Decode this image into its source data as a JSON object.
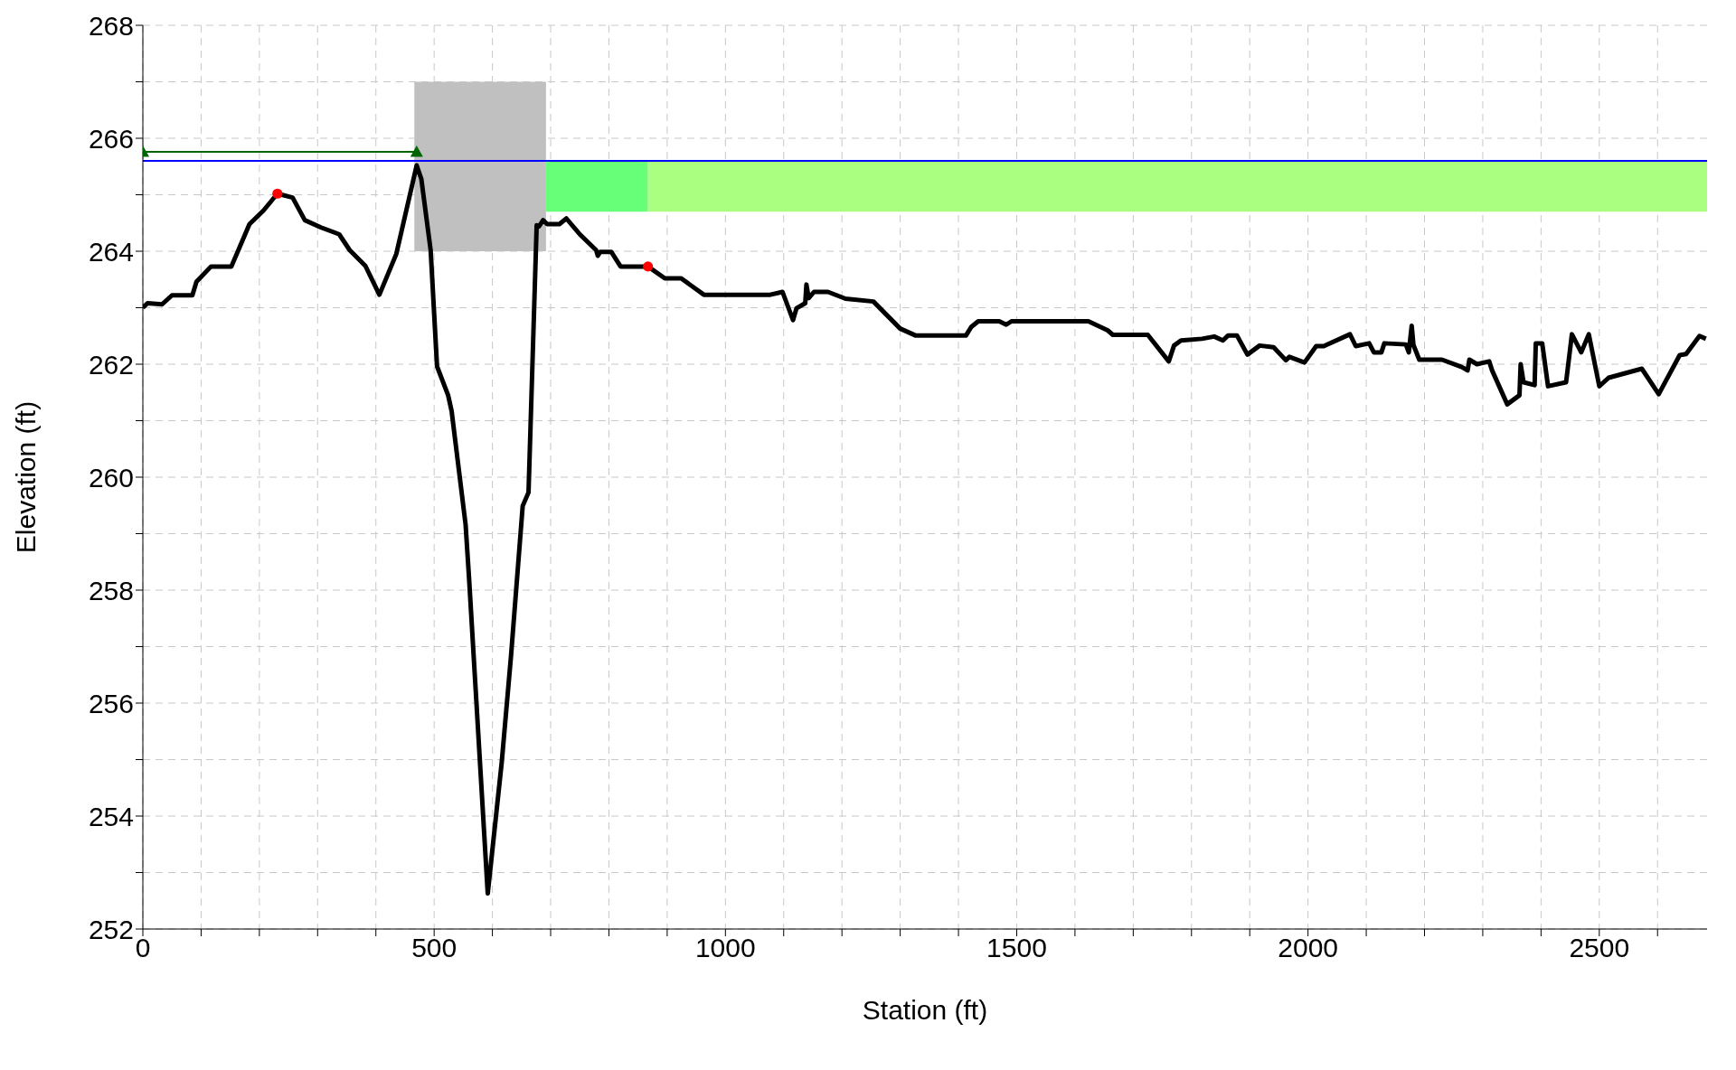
{
  "chart_data": {
    "type": "line",
    "xlabel": "Station (ft)",
    "ylabel": "Elevation (ft)",
    "xlim": [
      0,
      2685
    ],
    "ylim": [
      252,
      268
    ],
    "xticks": [
      0,
      {
        "value": 100,
        "label": null
      },
      {
        "value": 200,
        "label": null
      },
      {
        "value": 300,
        "label": null
      },
      {
        "value": 400,
        "label": null
      },
      500,
      {
        "value": 600,
        "label": null
      },
      {
        "value": 700,
        "label": null
      },
      {
        "value": 800,
        "label": null
      },
      {
        "value": 900,
        "label": null
      },
      1000,
      {
        "value": 1100,
        "label": null
      },
      {
        "value": 1200,
        "label": null
      },
      {
        "value": 1300,
        "label": null
      },
      {
        "value": 1400,
        "label": null
      },
      1500,
      {
        "value": 1600,
        "label": null
      },
      {
        "value": 1700,
        "label": null
      },
      {
        "value": 1800,
        "label": null
      },
      {
        "value": 1900,
        "label": null
      },
      2000,
      {
        "value": 2100,
        "label": null
      },
      {
        "value": 2200,
        "label": null
      },
      {
        "value": 2300,
        "label": null
      },
      {
        "value": 2400,
        "label": null
      },
      2500,
      {
        "value": 2600,
        "label": null
      }
    ],
    "yticks": [
      252,
      {
        "value": 253,
        "label": null
      },
      254,
      {
        "value": 255,
        "label": null
      },
      256,
      {
        "value": 257,
        "label": null
      },
      258,
      {
        "value": 259,
        "label": null
      },
      260,
      {
        "value": 261,
        "label": null
      },
      262,
      {
        "value": 263,
        "label": null
      },
      264,
      {
        "value": 265,
        "label": null
      },
      266,
      {
        "value": 267,
        "label": null
      },
      268
    ],
    "grid": true,
    "legend": false,
    "marker": "none",
    "line_style": "solid",
    "series": [
      {
        "type": "line",
        "color": "#c0c0c0",
        "x": [
          466,
          692
        ],
        "values": [
          null,
          null
        ],
        "lower": [
          264,
          264
        ],
        "upper": [
          267,
          267
        ]
      },
      {
        "type": "line",
        "color": "#66ff77",
        "x": [
          692,
          867
        ],
        "values": [
          null,
          null
        ],
        "lower": [
          264.7,
          264.7
        ],
        "upper": [
          265.6,
          265.6
        ]
      },
      {
        "type": "line",
        "color": "#aaff80",
        "x": [
          867,
          2685
        ],
        "values": [
          null,
          null
        ],
        "lower": [
          264.7,
          264.7
        ],
        "upper": [
          265.6,
          265.6
        ]
      },
      {
        "type": "line",
        "color": "#0000ff",
        "x": [
          0,
          2685
        ],
        "values": [
          265.6,
          265.6
        ]
      },
      {
        "type": "line",
        "color": "#006400",
        "marker": "triangle",
        "x": [
          0,
          470
        ],
        "values": [
          265.76,
          265.76
        ]
      },
      {
        "color": "#000000",
        "x": [
          0,
          8,
          33,
          50,
          85,
          92,
          117,
          152,
          183,
          207,
          231,
          257,
          278,
          306,
          337,
          355,
          382,
          406,
          435,
          470,
          478,
          494,
          505,
          524,
          530,
          554,
          560,
          592,
          616,
          632,
          652,
          662,
          676,
          680,
          687,
          694,
          715,
          727,
          750,
          778,
          781,
          785,
          804,
          820,
          867,
          896,
          924,
          963,
          1077,
          1098,
          1116,
          1122,
          1137,
          1139,
          1143,
          1152,
          1176,
          1206,
          1254,
          1300,
          1326,
          1413,
          1422,
          1434,
          1470,
          1482,
          1491,
          1623,
          1656,
          1665,
          1725,
          1761,
          1770,
          1782,
          1818,
          1839,
          1854,
          1863,
          1878,
          1896,
          1917,
          1941,
          1962,
          1968,
          1994,
          2014,
          2027,
          2072,
          2082,
          2105,
          2113,
          2126,
          2131,
          2168,
          2173,
          2178,
          2181,
          2191,
          2230,
          2264,
          2274,
          2277,
          2290,
          2311,
          2316,
          2342,
          2363,
          2365,
          2370,
          2389,
          2391,
          2402,
          2412,
          2443,
          2453,
          2469,
          2482,
          2500,
          2516,
          2573,
          2602,
          2638,
          2649,
          2672,
          2683
        ],
        "values": [
          263.0,
          263.08,
          263.06,
          263.22,
          263.22,
          263.46,
          263.73,
          263.73,
          264.48,
          264.72,
          265.02,
          264.95,
          264.55,
          264.42,
          264.3,
          264.02,
          263.74,
          263.23,
          263.95,
          265.52,
          265.28,
          264.02,
          261.96,
          261.45,
          261.17,
          259.16,
          258.2,
          252.63,
          254.95,
          256.84,
          259.49,
          259.73,
          264.46,
          264.44,
          264.55,
          264.48,
          264.48,
          264.58,
          264.3,
          264.02,
          263.92,
          263.99,
          263.99,
          263.73,
          263.73,
          263.52,
          263.52,
          263.23,
          263.23,
          263.28,
          262.78,
          262.99,
          263.08,
          263.41,
          263.17,
          263.28,
          263.28,
          263.16,
          263.11,
          262.63,
          262.51,
          262.51,
          262.66,
          262.76,
          262.76,
          262.7,
          262.76,
          262.76,
          262.6,
          262.52,
          262.52,
          262.05,
          262.33,
          262.42,
          262.45,
          262.49,
          262.42,
          262.51,
          262.51,
          262.17,
          262.33,
          262.3,
          262.07,
          262.13,
          262.03,
          262.32,
          262.32,
          262.53,
          262.32,
          262.37,
          262.21,
          262.21,
          262.37,
          262.35,
          262.21,
          262.68,
          262.34,
          262.08,
          262.08,
          261.95,
          261.89,
          262.08,
          262.0,
          262.05,
          261.89,
          261.29,
          261.45,
          262.0,
          261.68,
          261.63,
          262.37,
          262.37,
          261.61,
          261.68,
          262.53,
          262.21,
          262.53,
          261.61,
          261.76,
          261.92,
          261.47,
          262.16,
          262.18,
          262.5,
          262.45
        ]
      },
      {
        "type": "scatter",
        "color": "#ff0000",
        "marker": "circle",
        "x": [
          231,
          867
        ],
        "values": [
          265.02,
          263.73
        ]
      }
    ]
  }
}
